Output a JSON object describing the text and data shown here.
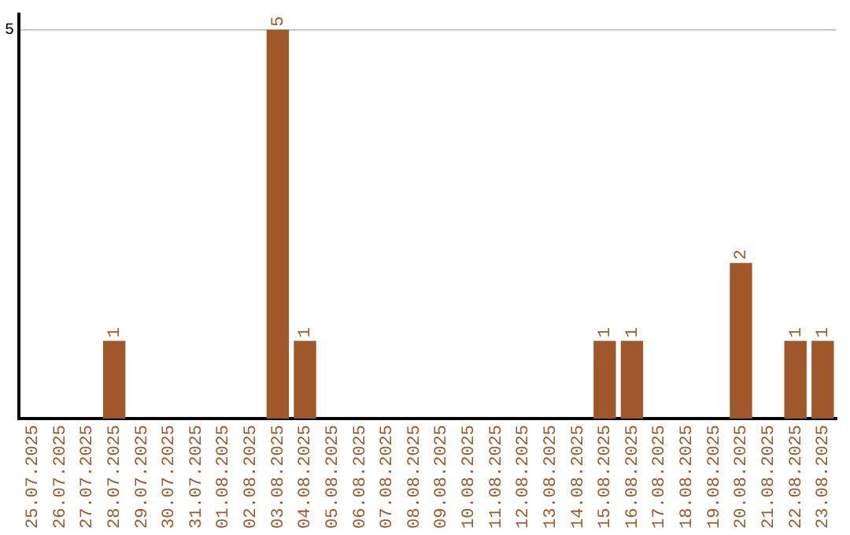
{
  "chart_data": {
    "type": "bar",
    "categories": [
      "25.07.2025",
      "26.07.2025",
      "27.07.2025",
      "28.07.2025",
      "29.07.2025",
      "30.07.2025",
      "31.07.2025",
      "01.08.2025",
      "02.08.2025",
      "03.08.2025",
      "04.08.2025",
      "05.08.2025",
      "06.08.2025",
      "07.08.2025",
      "08.08.2025",
      "09.08.2025",
      "10.08.2025",
      "11.08.2025",
      "12.08.2025",
      "13.08.2025",
      "14.08.2025",
      "15.08.2025",
      "16.08.2025",
      "17.08.2025",
      "18.08.2025",
      "19.08.2025",
      "20.08.2025",
      "21.08.2025",
      "22.08.2025",
      "23.08.2025"
    ],
    "values": [
      0,
      0,
      0,
      1,
      0,
      0,
      0,
      0,
      0,
      5,
      1,
      0,
      0,
      0,
      0,
      0,
      0,
      0,
      0,
      0,
      0,
      1,
      1,
      0,
      0,
      0,
      2,
      0,
      1,
      1
    ],
    "value_labels": [
      null,
      null,
      null,
      "1",
      null,
      null,
      null,
      null,
      null,
      "5",
      "1",
      null,
      null,
      null,
      null,
      null,
      null,
      null,
      null,
      null,
      null,
      "1",
      "1",
      null,
      null,
      null,
      "2",
      null,
      "1",
      "1"
    ],
    "color": "#a0582a",
    "ylim": [
      0,
      5.2
    ],
    "yticks": [
      5
    ],
    "grid": "y",
    "legend": false
  }
}
